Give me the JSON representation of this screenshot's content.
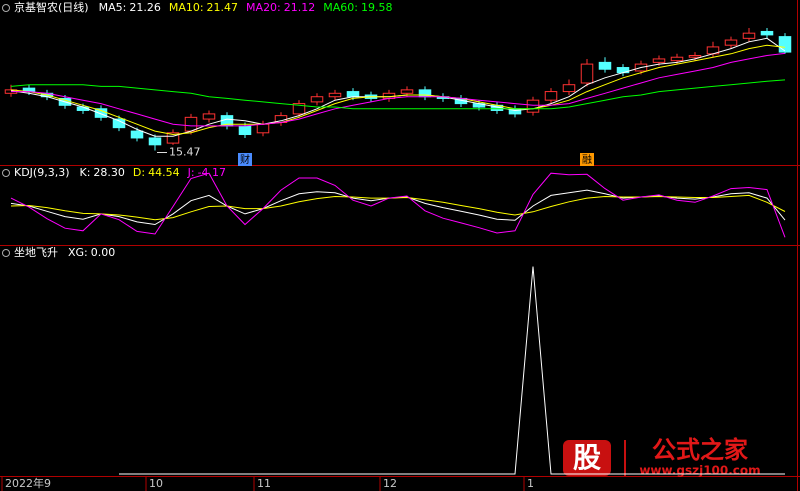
{
  "chart_data": [
    {
      "type": "candlestick",
      "title": "京基智农(日线)",
      "categories": [
        "2022年9",
        null,
        null,
        null,
        null,
        null,
        null,
        null,
        "10",
        null,
        null,
        null,
        null,
        null,
        "11",
        null,
        null,
        null,
        null,
        null,
        null,
        "12",
        null,
        null,
        null,
        null,
        null,
        null,
        null,
        "1",
        null,
        null,
        null,
        null,
        null,
        null,
        null,
        null,
        null,
        null,
        null,
        null,
        null,
        null
      ],
      "open": [
        18.8,
        19.1,
        18.8,
        18.5,
        18.0,
        17.9,
        17.3,
        16.6,
        16.2,
        15.9,
        16.6,
        17.3,
        17.5,
        16.9,
        16.5,
        17.1,
        17.6,
        18.3,
        18.6,
        18.9,
        18.7,
        18.5,
        18.8,
        19.0,
        18.6,
        18.5,
        18.2,
        18.1,
        17.9,
        17.7,
        18.4,
        18.9,
        19.4,
        20.6,
        20.3,
        20.1,
        20.6,
        20.7,
        20.9,
        21.1,
        21.6,
        22.0,
        22.4,
        22.1
      ],
      "high": [
        19.3,
        19.3,
        19.0,
        18.7,
        18.2,
        18.1,
        17.5,
        16.8,
        16.4,
        16.7,
        17.6,
        17.8,
        17.7,
        17.1,
        17.2,
        17.7,
        18.4,
        18.8,
        19.0,
        19.1,
        18.9,
        19.0,
        19.2,
        19.2,
        18.8,
        18.7,
        18.4,
        18.3,
        18.1,
        18.6,
        19.1,
        19.6,
        20.8,
        20.9,
        20.5,
        20.7,
        21.0,
        21.1,
        21.2,
        21.8,
        22.1,
        22.6,
        22.6,
        22.3
      ],
      "low": [
        18.6,
        18.7,
        18.4,
        17.9,
        17.6,
        17.2,
        16.6,
        16.0,
        15.47,
        15.8,
        16.4,
        17.1,
        16.7,
        16.2,
        16.3,
        16.9,
        17.4,
        18.1,
        18.4,
        18.4,
        18.3,
        18.3,
        18.6,
        18.4,
        18.3,
        18.0,
        17.8,
        17.6,
        17.4,
        17.5,
        18.2,
        18.7,
        19.2,
        20.0,
        19.8,
        19.9,
        20.4,
        20.5,
        20.7,
        20.9,
        21.4,
        21.8,
        22.0,
        21.1
      ],
      "close": [
        19.0,
        18.9,
        18.6,
        18.1,
        17.8,
        17.4,
        16.8,
        16.2,
        15.8,
        16.5,
        17.4,
        17.6,
        16.9,
        16.4,
        17.0,
        17.5,
        18.2,
        18.6,
        18.8,
        18.6,
        18.5,
        18.8,
        19.0,
        18.6,
        18.5,
        18.2,
        18.0,
        17.8,
        17.6,
        18.4,
        18.9,
        19.3,
        20.5,
        20.2,
        20.0,
        20.5,
        20.8,
        20.9,
        21.0,
        21.5,
        21.9,
        22.3,
        22.2,
        21.2
      ],
      "up_color": "#ff3232",
      "down_color": "#54ffff",
      "series": [
        {
          "name": "MA5:",
          "color": "#ffffff",
          "values": [
            18.95,
            18.8,
            18.6,
            18.3,
            18.0,
            17.6,
            17.2,
            16.7,
            16.3,
            16.3,
            16.6,
            17.0,
            17.3,
            17.2,
            17.0,
            17.2,
            17.5,
            17.9,
            18.4,
            18.6,
            18.6,
            18.6,
            18.7,
            18.7,
            18.6,
            18.4,
            18.2,
            18.0,
            17.8,
            17.9,
            18.2,
            18.6,
            19.3,
            19.7,
            20.0,
            20.3,
            20.5,
            20.6,
            20.8,
            21.1,
            21.4,
            21.8,
            22.0,
            21.26
          ]
        },
        {
          "name": "MA10:",
          "color": "#ffff00",
          "values": [
            19.0,
            18.9,
            18.7,
            18.4,
            18.1,
            17.8,
            17.4,
            17.0,
            16.6,
            16.4,
            16.5,
            16.8,
            17.0,
            17.0,
            17.0,
            17.1,
            17.4,
            17.8,
            18.2,
            18.5,
            18.6,
            18.6,
            18.7,
            18.7,
            18.6,
            18.5,
            18.3,
            18.1,
            17.9,
            17.9,
            18.1,
            18.4,
            18.9,
            19.3,
            19.7,
            20.0,
            20.3,
            20.5,
            20.7,
            20.9,
            21.1,
            21.4,
            21.6,
            21.47
          ]
        },
        {
          "name": "MA20:",
          "color": "#ff00ff",
          "values": [
            18.9,
            18.9,
            18.8,
            18.6,
            18.4,
            18.2,
            17.9,
            17.6,
            17.3,
            17.0,
            16.9,
            16.9,
            16.9,
            16.9,
            17.0,
            17.1,
            17.3,
            17.6,
            17.9,
            18.1,
            18.3,
            18.5,
            18.6,
            18.6,
            18.6,
            18.5,
            18.4,
            18.3,
            18.2,
            18.1,
            18.1,
            18.2,
            18.5,
            18.8,
            19.1,
            19.4,
            19.7,
            19.9,
            20.1,
            20.3,
            20.6,
            20.8,
            21.0,
            21.12
          ]
        },
        {
          "name": "MA60:",
          "color": "#00ff00",
          "values": [
            19.2,
            19.3,
            19.3,
            19.3,
            19.3,
            19.2,
            19.2,
            19.1,
            19.0,
            18.9,
            18.8,
            18.6,
            18.5,
            18.4,
            18.3,
            18.2,
            18.1,
            18.0,
            18.0,
            17.9,
            17.9,
            17.9,
            17.9,
            17.9,
            17.9,
            17.9,
            17.9,
            17.9,
            17.9,
            17.9,
            17.9,
            18.0,
            18.2,
            18.4,
            18.6,
            18.7,
            18.9,
            19.0,
            19.1,
            19.2,
            19.3,
            19.4,
            19.5,
            19.58
          ]
        }
      ],
      "annotations": [
        {
          "text": "财",
          "index": 13,
          "color": "#4a8cff"
        },
        {
          "text": "融",
          "index": 32,
          "color": "#ff9900"
        }
      ],
      "ylim": [
        14.8,
        23.3
      ]
    },
    {
      "type": "line",
      "title": "KDJ(9,3,3)",
      "series": [
        {
          "name": "K:",
          "color": "#ffffff",
          "values": [
            60,
            55,
            45,
            35,
            30,
            40,
            35,
            25,
            20,
            40,
            65,
            75,
            55,
            40,
            50,
            65,
            78,
            82,
            80,
            70,
            65,
            70,
            72,
            60,
            52,
            45,
            38,
            30,
            28,
            55,
            75,
            80,
            85,
            78,
            70,
            72,
            74,
            70,
            68,
            72,
            78,
            80,
            70,
            28.3
          ],
          "value_labels": [
            null,
            null,
            null,
            null,
            null,
            null,
            null,
            null,
            null,
            null,
            null,
            null,
            null,
            null,
            null,
            null,
            null,
            null,
            null,
            null,
            null,
            null,
            null,
            null,
            null,
            null,
            null,
            null,
            null,
            null,
            null,
            null,
            null,
            null,
            null,
            null,
            null,
            null,
            null,
            null,
            null,
            null,
            null,
            "28.30"
          ]
        },
        {
          "name": "D:",
          "color": "#ffff00",
          "values": [
            55,
            56,
            52,
            46,
            41,
            40,
            38,
            34,
            29,
            33,
            44,
            54,
            55,
            50,
            50,
            55,
            63,
            69,
            73,
            72,
            70,
            70,
            71,
            67,
            62,
            56,
            50,
            43,
            38,
            44,
            54,
            63,
            70,
            73,
            72,
            72,
            73,
            72,
            71,
            71,
            73,
            75,
            62,
            44.54
          ]
        },
        {
          "name": "J:",
          "color": "#ff00ff",
          "values": [
            70,
            53,
            31,
            13,
            8,
            40,
            29,
            7,
            2,
            54,
            107,
            117,
            55,
            20,
            50,
            85,
            108,
            108,
            94,
            66,
            55,
            70,
            74,
            46,
            32,
            23,
            14,
            4,
            8,
            77,
            117,
            114,
            115,
            88,
            66,
            72,
            76,
            66,
            62,
            74,
            88,
            90,
            86,
            -4.17
          ]
        }
      ],
      "ylim": [
        -15,
        125
      ]
    },
    {
      "type": "line",
      "title": "坐地飞升",
      "series": [
        {
          "name": "XG:",
          "color": "#ffffff",
          "values": [
            null,
            null,
            null,
            null,
            null,
            null,
            0,
            0,
            0,
            0,
            0,
            0,
            0,
            0,
            0,
            0,
            0,
            0,
            0,
            0,
            0,
            0,
            0,
            0,
            0,
            0,
            0,
            0,
            0,
            1,
            0,
            0,
            0,
            0,
            0,
            0,
            0,
            0,
            0,
            0,
            0,
            0,
            0,
            0
          ],
          "value_labels": [
            null,
            null,
            null,
            null,
            null,
            null,
            null,
            null,
            null,
            null,
            null,
            null,
            null,
            null,
            null,
            null,
            null,
            null,
            null,
            null,
            null,
            null,
            null,
            null,
            null,
            null,
            null,
            null,
            null,
            null,
            null,
            null,
            null,
            null,
            null,
            null,
            null,
            null,
            null,
            null,
            null,
            null,
            null,
            "0.00"
          ]
        }
      ],
      "ylim": [
        0,
        1.07
      ]
    }
  ],
  "watermark": {
    "icon": "股",
    "name": "公式之家",
    "url": "www.gszj100.com"
  }
}
